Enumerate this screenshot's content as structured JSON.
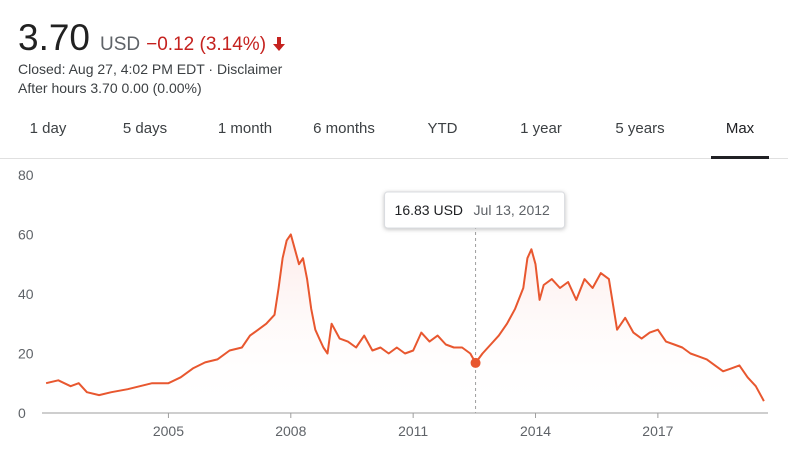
{
  "quote": {
    "price": "3.70",
    "currency": "USD",
    "change": "−0.12 (3.14%)",
    "change_direction": "down",
    "change_color": "#c5221f",
    "closed_text": "Closed: Aug 27, 4:02 PM EDT",
    "separator": " · ",
    "disclaimer_label": "Disclaimer",
    "after_hours_text": "After hours 3.70 0.00 (0.00%)"
  },
  "tabs": [
    {
      "label": "1 day",
      "active": false
    },
    {
      "label": "5 days",
      "active": false
    },
    {
      "label": "1 month",
      "active": false
    },
    {
      "label": "6 months",
      "active": false
    },
    {
      "label": "YTD",
      "active": false
    },
    {
      "label": "1 year",
      "active": false
    },
    {
      "label": "5 years",
      "active": false
    },
    {
      "label": "Max",
      "active": true
    }
  ],
  "tooltip": {
    "price": "16.83 USD",
    "date": "Jul 13, 2012"
  },
  "chart_data": {
    "type": "area",
    "line_color": "#e8572f",
    "fill_color": "#fde8e6",
    "ylim": [
      0,
      85
    ],
    "yticks": [
      "0",
      "20",
      "40",
      "60",
      "80"
    ],
    "xlim": [
      2001.9,
      2019.7
    ],
    "xticks": [
      "2005",
      "2008",
      "2011",
      "2014",
      "2017"
    ],
    "hover": {
      "x": 2012.53,
      "y": 16.83
    },
    "series": [
      {
        "x": [
          2002.0,
          2002.3,
          2002.6,
          2002.8,
          2003.0,
          2003.3,
          2003.6,
          2004.0,
          2004.3,
          2004.6,
          2005.0,
          2005.3,
          2005.6,
          2005.9,
          2006.2,
          2006.5,
          2006.8,
          2007.0,
          2007.2,
          2007.4,
          2007.6,
          2007.7,
          2007.8,
          2007.9,
          2008.0,
          2008.1,
          2008.2,
          2008.3,
          2008.4,
          2008.5,
          2008.6,
          2008.7,
          2008.8,
          2008.9,
          2009.0,
          2009.2,
          2009.4,
          2009.6,
          2009.8,
          2010.0,
          2010.2,
          2010.4,
          2010.6,
          2010.8,
          2011.0,
          2011.2,
          2011.4,
          2011.6,
          2011.8,
          2012.0,
          2012.2,
          2012.4,
          2012.53,
          2012.7,
          2012.9,
          2013.1,
          2013.3,
          2013.5,
          2013.7,
          2013.8,
          2013.9,
          2014.0,
          2014.1,
          2014.2,
          2014.4,
          2014.6,
          2014.8,
          2015.0,
          2015.2,
          2015.4,
          2015.6,
          2015.8,
          2016.0,
          2016.2,
          2016.4,
          2016.6,
          2016.8,
          2017.0,
          2017.2,
          2017.4,
          2017.6,
          2017.8,
          2018.0,
          2018.2,
          2018.4,
          2018.6,
          2018.8,
          2019.0,
          2019.2,
          2019.4,
          2019.6
        ],
        "y": [
          10,
          11,
          9,
          10,
          7,
          6,
          7,
          8,
          9,
          10,
          10,
          12,
          15,
          17,
          18,
          21,
          22,
          26,
          28,
          30,
          33,
          42,
          52,
          58,
          60,
          55,
          50,
          52,
          45,
          35,
          28,
          25,
          22,
          20,
          30,
          25,
          24,
          22,
          26,
          21,
          22,
          20,
          22,
          20,
          21,
          27,
          24,
          26,
          23,
          22,
          22,
          20,
          16.83,
          20,
          23,
          26,
          30,
          35,
          42,
          52,
          55,
          50,
          38,
          43,
          45,
          42,
          44,
          38,
          45,
          42,
          47,
          45,
          28,
          32,
          27,
          25,
          27,
          28,
          24,
          23,
          22,
          20,
          19,
          18,
          16,
          14,
          15,
          16,
          12,
          9,
          4
        ]
      }
    ]
  }
}
